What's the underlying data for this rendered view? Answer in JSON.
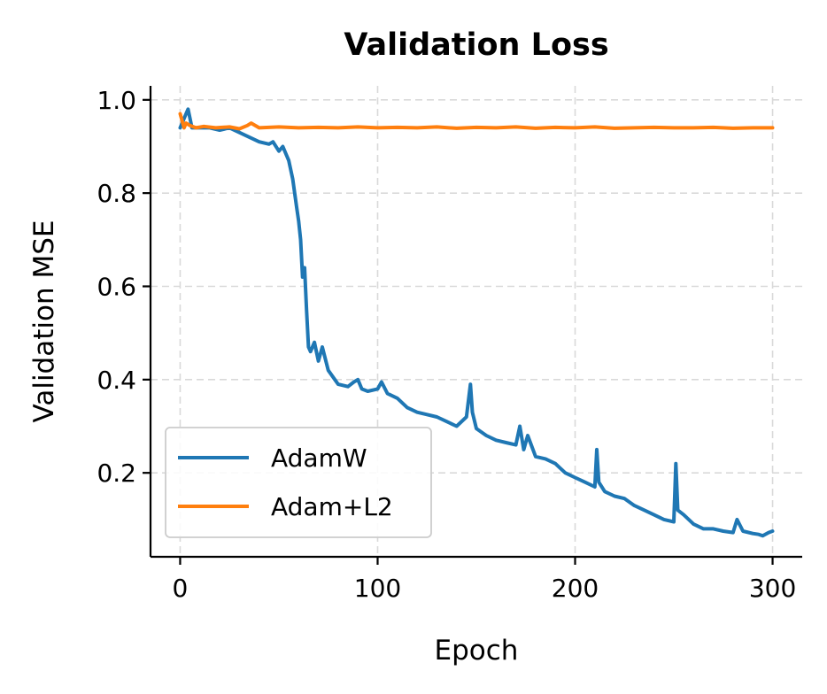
{
  "chart_data": {
    "type": "line",
    "title": "Validation Loss",
    "xlabel": "Epoch",
    "ylabel": "Validation MSE",
    "xlim": [
      -15,
      315
    ],
    "ylim": [
      0.02,
      1.03
    ],
    "xticks": [
      0,
      100,
      200,
      300
    ],
    "yticks": [
      0.2,
      0.4,
      0.6,
      0.8,
      1.0
    ],
    "xtick_labels": [
      "0",
      "100",
      "200",
      "300"
    ],
    "ytick_labels": [
      "0.2",
      "0.4",
      "0.6",
      "0.8",
      "1.0"
    ],
    "grid": true,
    "legend_position": "lower-left",
    "series": [
      {
        "name": "AdamW",
        "color": "#1f77b4",
        "x": [
          0,
          2,
          3,
          4,
          6,
          10,
          15,
          20,
          25,
          30,
          35,
          40,
          45,
          47,
          50,
          52,
          55,
          57,
          58,
          59,
          60,
          61,
          62,
          63,
          64,
          65,
          66,
          68,
          70,
          72,
          75,
          80,
          85,
          88,
          90,
          92,
          95,
          100,
          102,
          105,
          110,
          115,
          120,
          125,
          130,
          135,
          140,
          145,
          147,
          148,
          150,
          155,
          160,
          165,
          170,
          172,
          174,
          176,
          180,
          185,
          190,
          195,
          200,
          205,
          210,
          211,
          212,
          215,
          220,
          225,
          230,
          235,
          240,
          245,
          250,
          251,
          252,
          255,
          260,
          265,
          270,
          275,
          280,
          282,
          285,
          290,
          293,
          295,
          298,
          300
        ],
        "y": [
          0.94,
          0.96,
          0.97,
          0.98,
          0.94,
          0.94,
          0.94,
          0.935,
          0.94,
          0.93,
          0.92,
          0.91,
          0.905,
          0.91,
          0.89,
          0.9,
          0.87,
          0.83,
          0.8,
          0.77,
          0.74,
          0.7,
          0.62,
          0.64,
          0.55,
          0.47,
          0.46,
          0.48,
          0.44,
          0.47,
          0.42,
          0.39,
          0.385,
          0.395,
          0.4,
          0.38,
          0.375,
          0.38,
          0.395,
          0.37,
          0.36,
          0.34,
          0.33,
          0.325,
          0.32,
          0.31,
          0.3,
          0.32,
          0.39,
          0.33,
          0.295,
          0.28,
          0.27,
          0.265,
          0.26,
          0.3,
          0.25,
          0.28,
          0.235,
          0.23,
          0.22,
          0.2,
          0.19,
          0.18,
          0.17,
          0.25,
          0.18,
          0.16,
          0.15,
          0.145,
          0.13,
          0.12,
          0.11,
          0.1,
          0.095,
          0.22,
          0.12,
          0.11,
          0.09,
          0.08,
          0.08,
          0.075,
          0.072,
          0.1,
          0.075,
          0.07,
          0.068,
          0.065,
          0.072,
          0.075
        ]
      },
      {
        "name": "Adam+L2",
        "color": "#ff7f0e",
        "x": [
          0,
          1,
          2,
          3,
          5,
          8,
          12,
          18,
          25,
          30,
          34,
          36,
          40,
          50,
          60,
          70,
          80,
          90,
          100,
          110,
          120,
          130,
          140,
          150,
          160,
          170,
          180,
          190,
          200,
          210,
          220,
          230,
          240,
          250,
          260,
          270,
          280,
          290,
          300
        ],
        "y": [
          0.97,
          0.955,
          0.94,
          0.95,
          0.945,
          0.94,
          0.943,
          0.94,
          0.942,
          0.938,
          0.945,
          0.95,
          0.94,
          0.942,
          0.94,
          0.941,
          0.94,
          0.942,
          0.94,
          0.941,
          0.94,
          0.942,
          0.939,
          0.941,
          0.94,
          0.942,
          0.939,
          0.941,
          0.94,
          0.942,
          0.939,
          0.94,
          0.941,
          0.94,
          0.94,
          0.941,
          0.939,
          0.94,
          0.94
        ]
      }
    ]
  }
}
